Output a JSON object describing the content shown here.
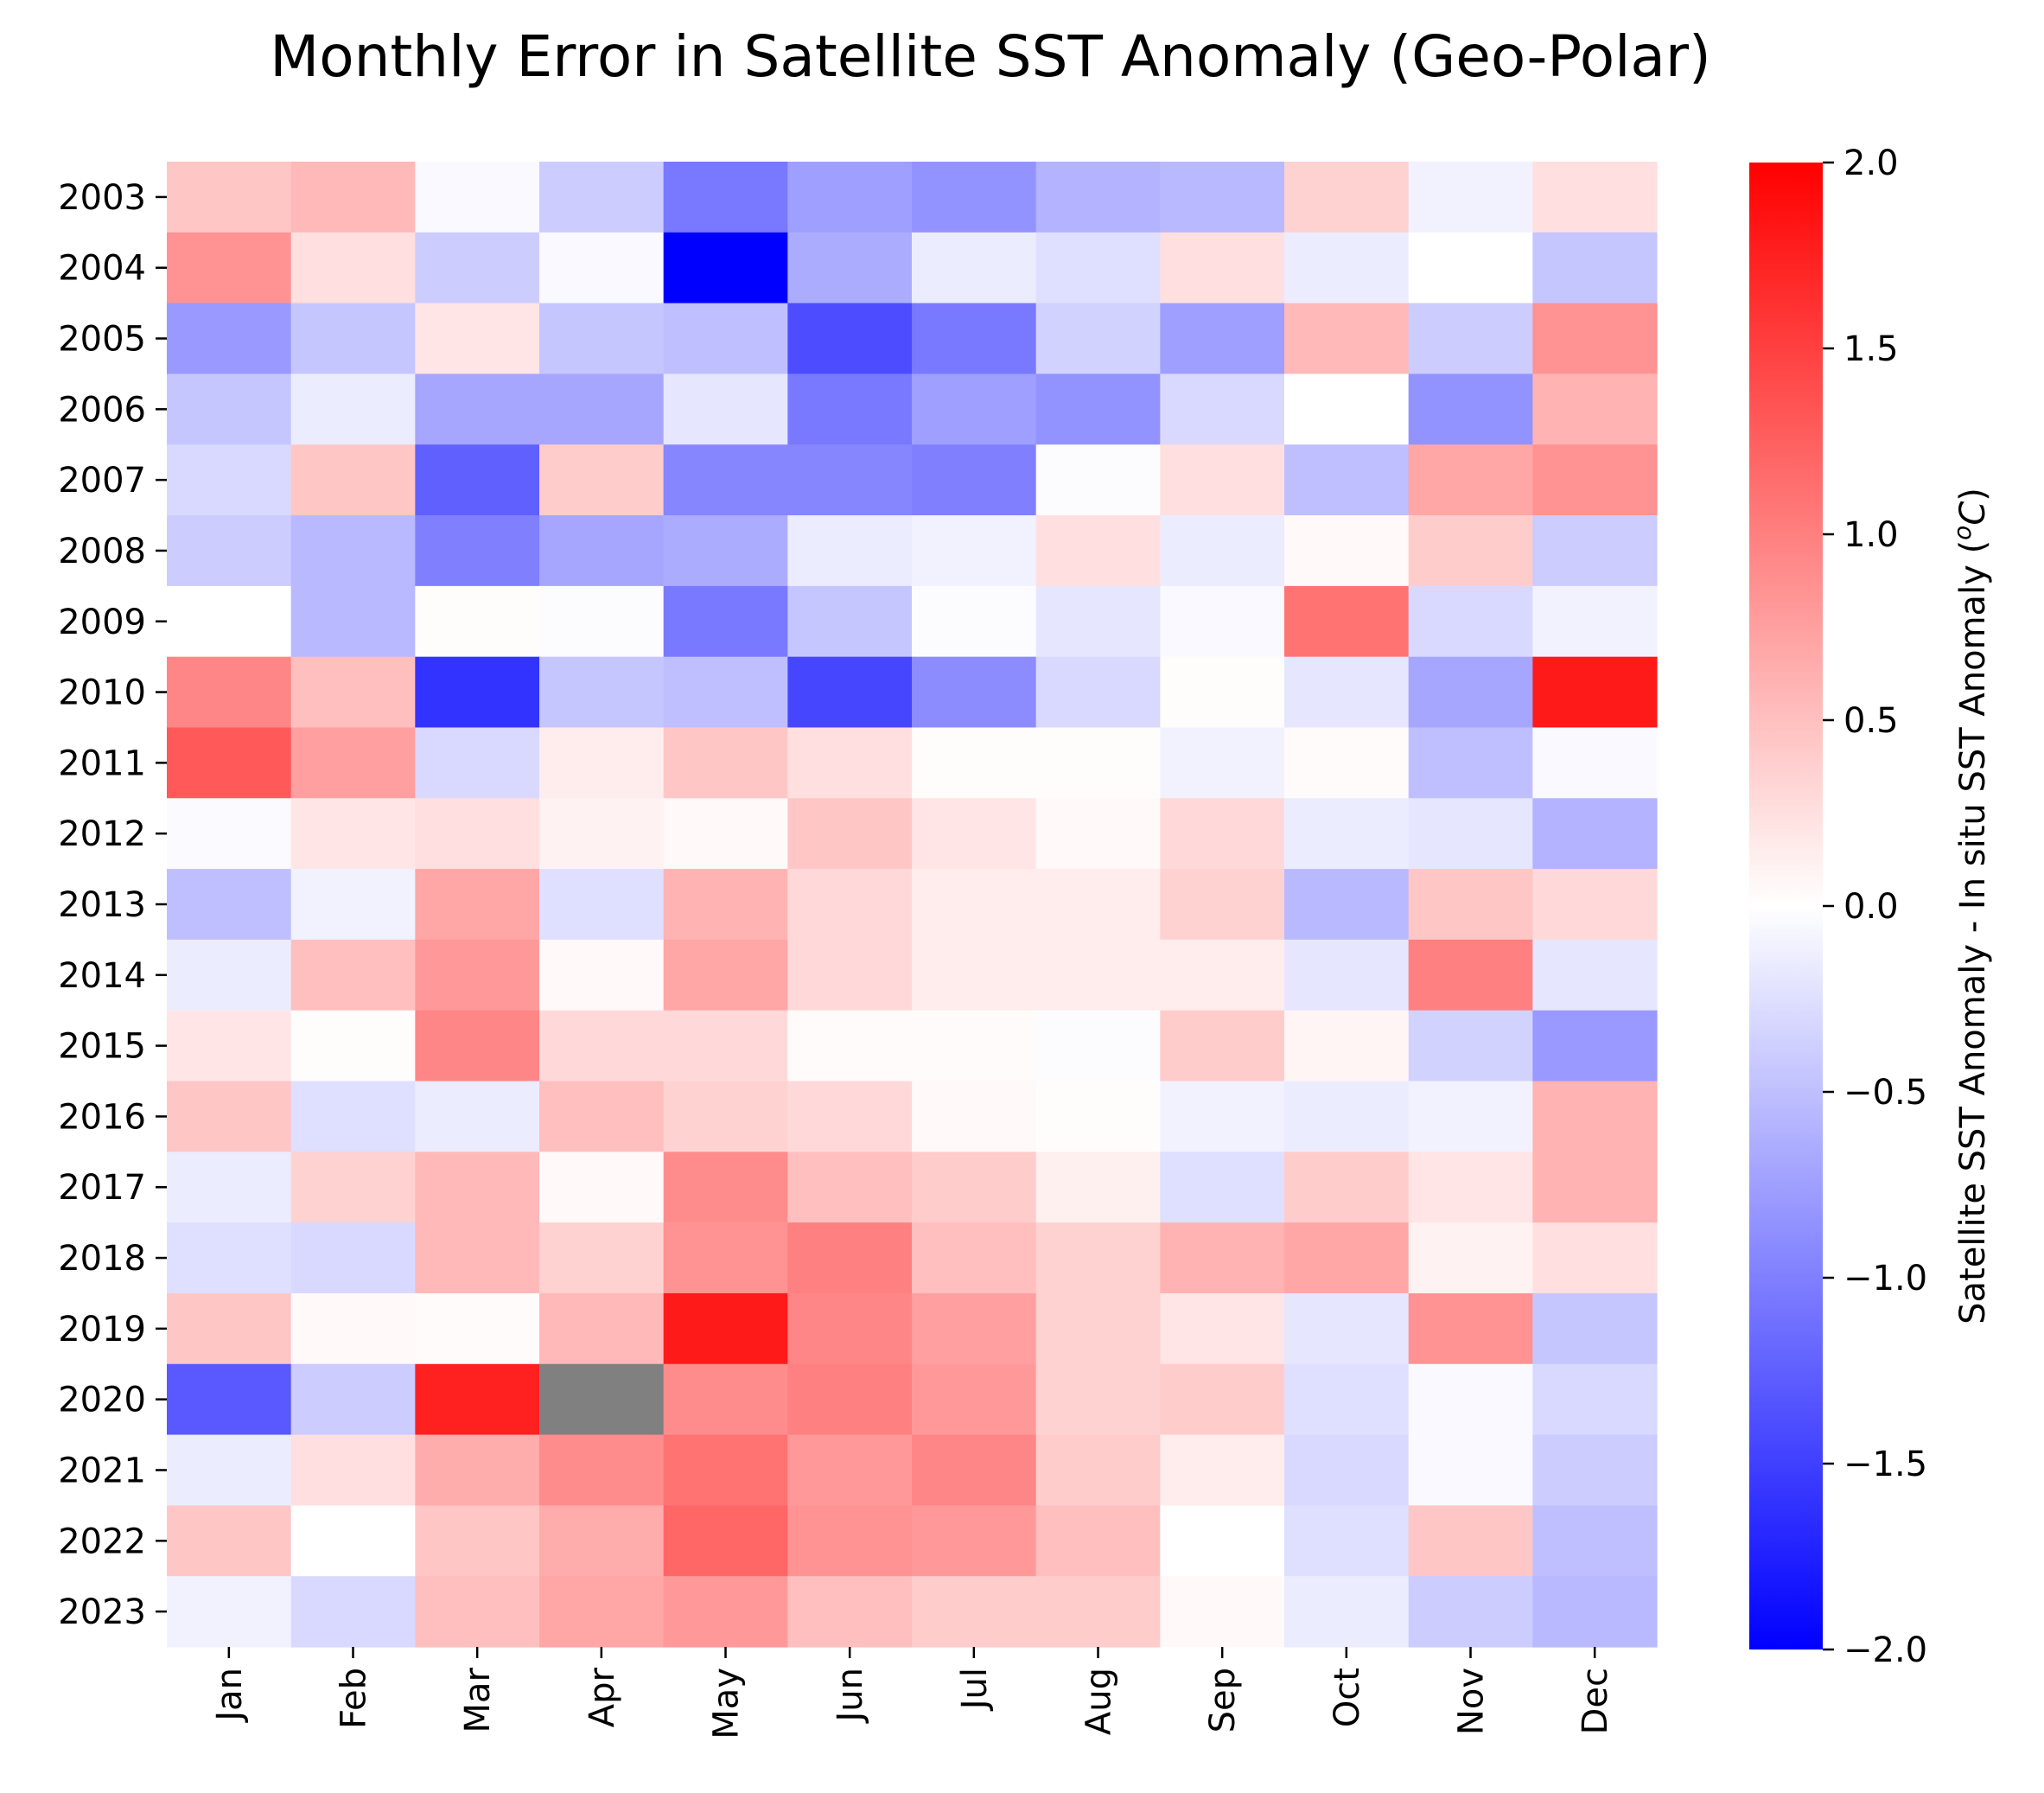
{
  "chart_data": {
    "type": "heatmap",
    "title": "Monthly Error in Satellite SST Anomaly (Geo-Polar)",
    "x_categories": [
      "Jan",
      "Feb",
      "Mar",
      "Apr",
      "May",
      "Jun",
      "Jul",
      "Aug",
      "Sep",
      "Oct",
      "Nov",
      "Dec"
    ],
    "y_categories": [
      "2003",
      "2004",
      "2005",
      "2006",
      "2007",
      "2008",
      "2009",
      "2010",
      "2011",
      "2012",
      "2013",
      "2014",
      "2015",
      "2016",
      "2017",
      "2018",
      "2019",
      "2020",
      "2021",
      "2022",
      "2023"
    ],
    "values": [
      [
        0.45,
        0.55,
        -0.05,
        -0.4,
        -1.05,
        -0.75,
        -0.85,
        -0.6,
        -0.55,
        0.35,
        -0.1,
        0.25
      ],
      [
        0.85,
        0.25,
        -0.4,
        -0.05,
        -2.0,
        -0.65,
        -0.15,
        -0.25,
        0.25,
        -0.15,
        0.0,
        -0.45
      ],
      [
        -0.8,
        -0.45,
        0.2,
        -0.45,
        -0.5,
        -1.4,
        -1.05,
        -0.35,
        -0.75,
        0.55,
        -0.4,
        0.85
      ],
      [
        -0.45,
        -0.15,
        -0.7,
        -0.7,
        -0.2,
        -1.05,
        -0.75,
        -0.85,
        -0.3,
        0.0,
        -0.85,
        0.6
      ],
      [
        -0.3,
        0.45,
        -1.25,
        0.4,
        -0.95,
        -0.95,
        -1.0,
        -0.02,
        0.25,
        -0.5,
        0.7,
        0.85
      ],
      [
        -0.4,
        -0.55,
        -1.0,
        -0.7,
        -0.65,
        -0.15,
        -0.1,
        0.25,
        -0.15,
        0.05,
        0.4,
        -0.4
      ],
      [
        0.0,
        -0.55,
        0.02,
        -0.02,
        -1.05,
        -0.45,
        -0.02,
        -0.2,
        -0.05,
        1.1,
        -0.3,
        -0.1
      ],
      [
        0.95,
        0.5,
        -1.6,
        -0.45,
        -0.5,
        -1.45,
        -0.9,
        -0.3,
        0.02,
        -0.2,
        -0.7,
        1.8
      ],
      [
        1.3,
        0.75,
        -0.3,
        0.15,
        0.45,
        0.25,
        0.02,
        0.02,
        -0.1,
        0.03,
        -0.5,
        -0.05
      ],
      [
        -0.03,
        0.2,
        0.25,
        0.1,
        0.05,
        0.45,
        0.2,
        0.05,
        0.3,
        -0.15,
        -0.2,
        -0.6
      ],
      [
        -0.5,
        -0.1,
        0.7,
        -0.25,
        0.6,
        0.3,
        0.15,
        0.15,
        0.35,
        -0.55,
        0.45,
        0.3
      ],
      [
        -0.15,
        0.5,
        0.8,
        0.05,
        0.7,
        0.3,
        0.15,
        0.15,
        0.15,
        -0.2,
        1.0,
        -0.2
      ],
      [
        0.2,
        0.02,
        0.95,
        0.3,
        0.3,
        0.03,
        0.03,
        -0.02,
        0.4,
        0.08,
        -0.35,
        -0.8
      ],
      [
        0.45,
        -0.25,
        -0.15,
        0.5,
        0.35,
        0.3,
        0.05,
        0.02,
        -0.1,
        -0.15,
        -0.1,
        0.6
      ],
      [
        -0.15,
        0.35,
        0.55,
        0.05,
        0.9,
        0.5,
        0.4,
        0.12,
        -0.25,
        0.4,
        0.2,
        0.6
      ],
      [
        -0.25,
        -0.3,
        0.55,
        0.35,
        0.85,
        1.0,
        0.5,
        0.35,
        0.6,
        0.7,
        0.1,
        0.25
      ],
      [
        0.45,
        0.05,
        0.03,
        0.55,
        1.8,
        0.95,
        0.75,
        0.35,
        0.2,
        -0.2,
        0.85,
        -0.45
      ],
      [
        -1.3,
        -0.4,
        1.75,
        null,
        0.9,
        1.0,
        0.8,
        0.35,
        0.4,
        -0.25,
        -0.05,
        -0.3
      ],
      [
        -0.15,
        0.25,
        0.65,
        0.9,
        1.1,
        0.8,
        0.95,
        0.4,
        0.15,
        -0.3,
        -0.05,
        -0.4
      ],
      [
        0.45,
        0.0,
        0.45,
        0.65,
        1.2,
        0.85,
        0.8,
        0.5,
        0.0,
        -0.25,
        0.45,
        -0.5
      ],
      [
        -0.1,
        -0.3,
        0.5,
        0.7,
        0.8,
        0.5,
        0.4,
        0.4,
        0.05,
        -0.15,
        -0.4,
        -0.55
      ]
    ],
    "missing_color": "#808080",
    "colorscale": {
      "name": "bwr",
      "low": "#0000ff",
      "mid": "#ffffff",
      "high": "#ff0000",
      "min": -2.0,
      "max": 2.0
    },
    "colorbar": {
      "label": "Satellite SST Anomaly - In situ SST Anomaly (",
      "label_unit_super": "o",
      "label_unit": "C",
      "label_close": ")",
      "ticks": [
        2.0,
        1.5,
        1.0,
        0.5,
        0.0,
        -0.5,
        -1.0,
        -1.5,
        -2.0
      ],
      "tick_labels": [
        "2.0",
        "1.5",
        "1.0",
        "0.5",
        "0.0",
        "−0.5",
        "−1.0",
        "−1.5",
        "−2.0"
      ]
    },
    "grid": false,
    "legend": "colorbar-right"
  }
}
